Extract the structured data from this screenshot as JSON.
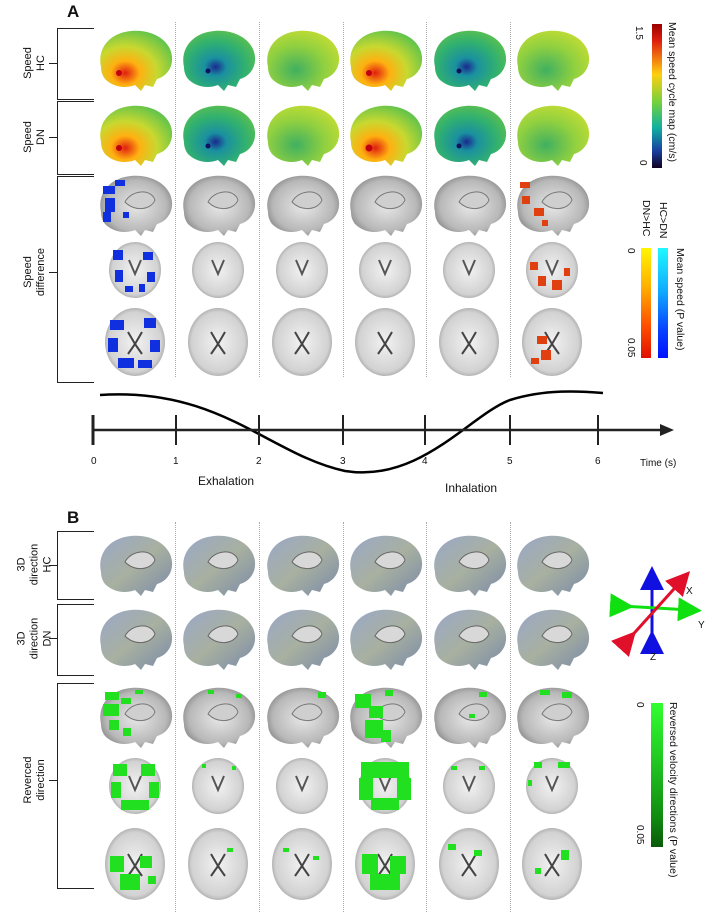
{
  "panel_a": {
    "letter": "A",
    "rows": [
      {
        "label_line1": "Speed",
        "label_line2": "HC"
      },
      {
        "label_line1": "Speed",
        "label_line2": "DN"
      },
      {
        "label_line1": "Speed",
        "label_line2": "difference"
      }
    ],
    "speed_colorbar": {
      "title": "Mean speed cycle map (cm/s)",
      "max": "1.5",
      "min": "0",
      "colors": [
        "#7a0000",
        "#e02010",
        "#ffcf10",
        "#70d040",
        "#10b0a0",
        "#1a40a0",
        "#100020"
      ]
    },
    "pvalue_colorbar": {
      "title": "Mean speed (P value)",
      "hc_label": "HC>DN",
      "dn_label": "DN>HC",
      "top_value": "0",
      "bottom_value": "0.05"
    }
  },
  "timeline": {
    "ticks": [
      "0",
      "1",
      "2",
      "3",
      "4",
      "5",
      "6"
    ],
    "axis_label": "Time (s)",
    "phase1": "Exhalation",
    "phase2": "Inhalation"
  },
  "panel_b": {
    "letter": "B",
    "rows": [
      {
        "label_line1": "3D",
        "label_line2": "direction",
        "label_line3": "HC"
      },
      {
        "label_line1": "3D",
        "label_line2": "direction",
        "label_line3": "DN"
      },
      {
        "label_line1": "Reverced",
        "label_line2": "direction"
      }
    ],
    "axes_legend": {
      "x": "X",
      "y": "Y",
      "z": "Z"
    },
    "reversed_colorbar": {
      "title": "Reversed velocity directions (P value)",
      "top_value": "0",
      "bottom_value": "0.05"
    }
  }
}
